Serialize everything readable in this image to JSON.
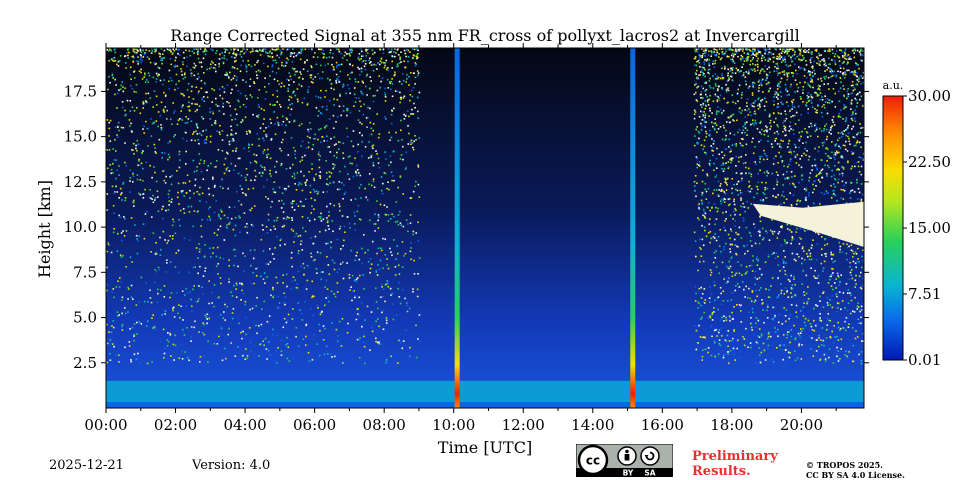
{
  "chart_data": {
    "type": "heatmap",
    "title": "Range Corrected Signal at 355 nm FR_cross of pollyxt_lacros2 at Invercargill",
    "xlabel": "Time [UTC]",
    "ylabel": "Height [km]",
    "xlim_hours": [
      0,
      21.8
    ],
    "ylim_km": [
      0,
      19.9
    ],
    "x_ticks": [
      {
        "hour": 0,
        "label": "00:00"
      },
      {
        "hour": 2,
        "label": "02:00"
      },
      {
        "hour": 4,
        "label": "04:00"
      },
      {
        "hour": 6,
        "label": "06:00"
      },
      {
        "hour": 8,
        "label": "08:00"
      },
      {
        "hour": 10,
        "label": "10:00"
      },
      {
        "hour": 12,
        "label": "12:00"
      },
      {
        "hour": 14,
        "label": "14:00"
      },
      {
        "hour": 16,
        "label": "16:00"
      },
      {
        "hour": 18,
        "label": "18:00"
      },
      {
        "hour": 20,
        "label": "20:00"
      }
    ],
    "y_ticks": [
      {
        "km": 2.5,
        "label": "2.5"
      },
      {
        "km": 5.0,
        "label": "5.0"
      },
      {
        "km": 7.5,
        "label": "7.5"
      },
      {
        "km": 10.0,
        "label": "10.0"
      },
      {
        "km": 12.5,
        "label": "12.5"
      },
      {
        "km": 15.0,
        "label": "15.0"
      },
      {
        "km": 17.5,
        "label": "17.5"
      }
    ],
    "colorbar": {
      "unit": "a.u.",
      "range": [
        0.01,
        30.0
      ],
      "ticks": [
        {
          "value": 0.01,
          "label": "0.01"
        },
        {
          "value": 7.51,
          "label": "7.51"
        },
        {
          "value": 15.0,
          "label": "15.00"
        },
        {
          "value": 22.5,
          "label": "22.50"
        },
        {
          "value": 30.0,
          "label": "30.00"
        }
      ],
      "colors": [
        "#0018b4",
        "#0a64e8",
        "#08b4d2",
        "#2ad05a",
        "#b4e61e",
        "#fadc00",
        "#ff8c00",
        "#f01e0a"
      ]
    },
    "features": [
      {
        "name": "boundary layer",
        "time_range_hours": [
          0,
          21.8
        ],
        "height_km": [
          0,
          1.5
        ],
        "signal_level": "high"
      },
      {
        "name": "vertical signal column",
        "time_hours": 10.1,
        "height_km": [
          0,
          19.9
        ],
        "signal_level": "peak near surface"
      },
      {
        "name": "vertical signal column",
        "time_hours": 15.15,
        "height_km": [
          0,
          19.9
        ],
        "signal_level": "peak near surface"
      },
      {
        "name": "cirrus cloud",
        "time_range_hours": [
          18.6,
          21.8
        ],
        "height_km": [
          8.9,
          11.4
        ],
        "signal_level": "saturated"
      },
      {
        "name": "noisy sky background",
        "time_range_hours": [
          0,
          9.0
        ],
        "height_km": [
          2.5,
          19.9
        ],
        "signal_level": "noise"
      },
      {
        "name": "noisy sky background",
        "time_range_hours": [
          16.9,
          21.8
        ],
        "height_km": [
          2.5,
          19.9
        ],
        "signal_level": "noise"
      }
    ]
  },
  "footer": {
    "date": "2025-12-21",
    "version": "Version: 4.0",
    "license_badge": {
      "cc": "cc",
      "by": "BY",
      "sa": "SA"
    },
    "preliminary_line1": "Preliminary",
    "preliminary_line2": "Results.",
    "copyright_line1": "© TROPOS 2025.",
    "copyright_line2": "CC BY SA 4.0 License."
  }
}
